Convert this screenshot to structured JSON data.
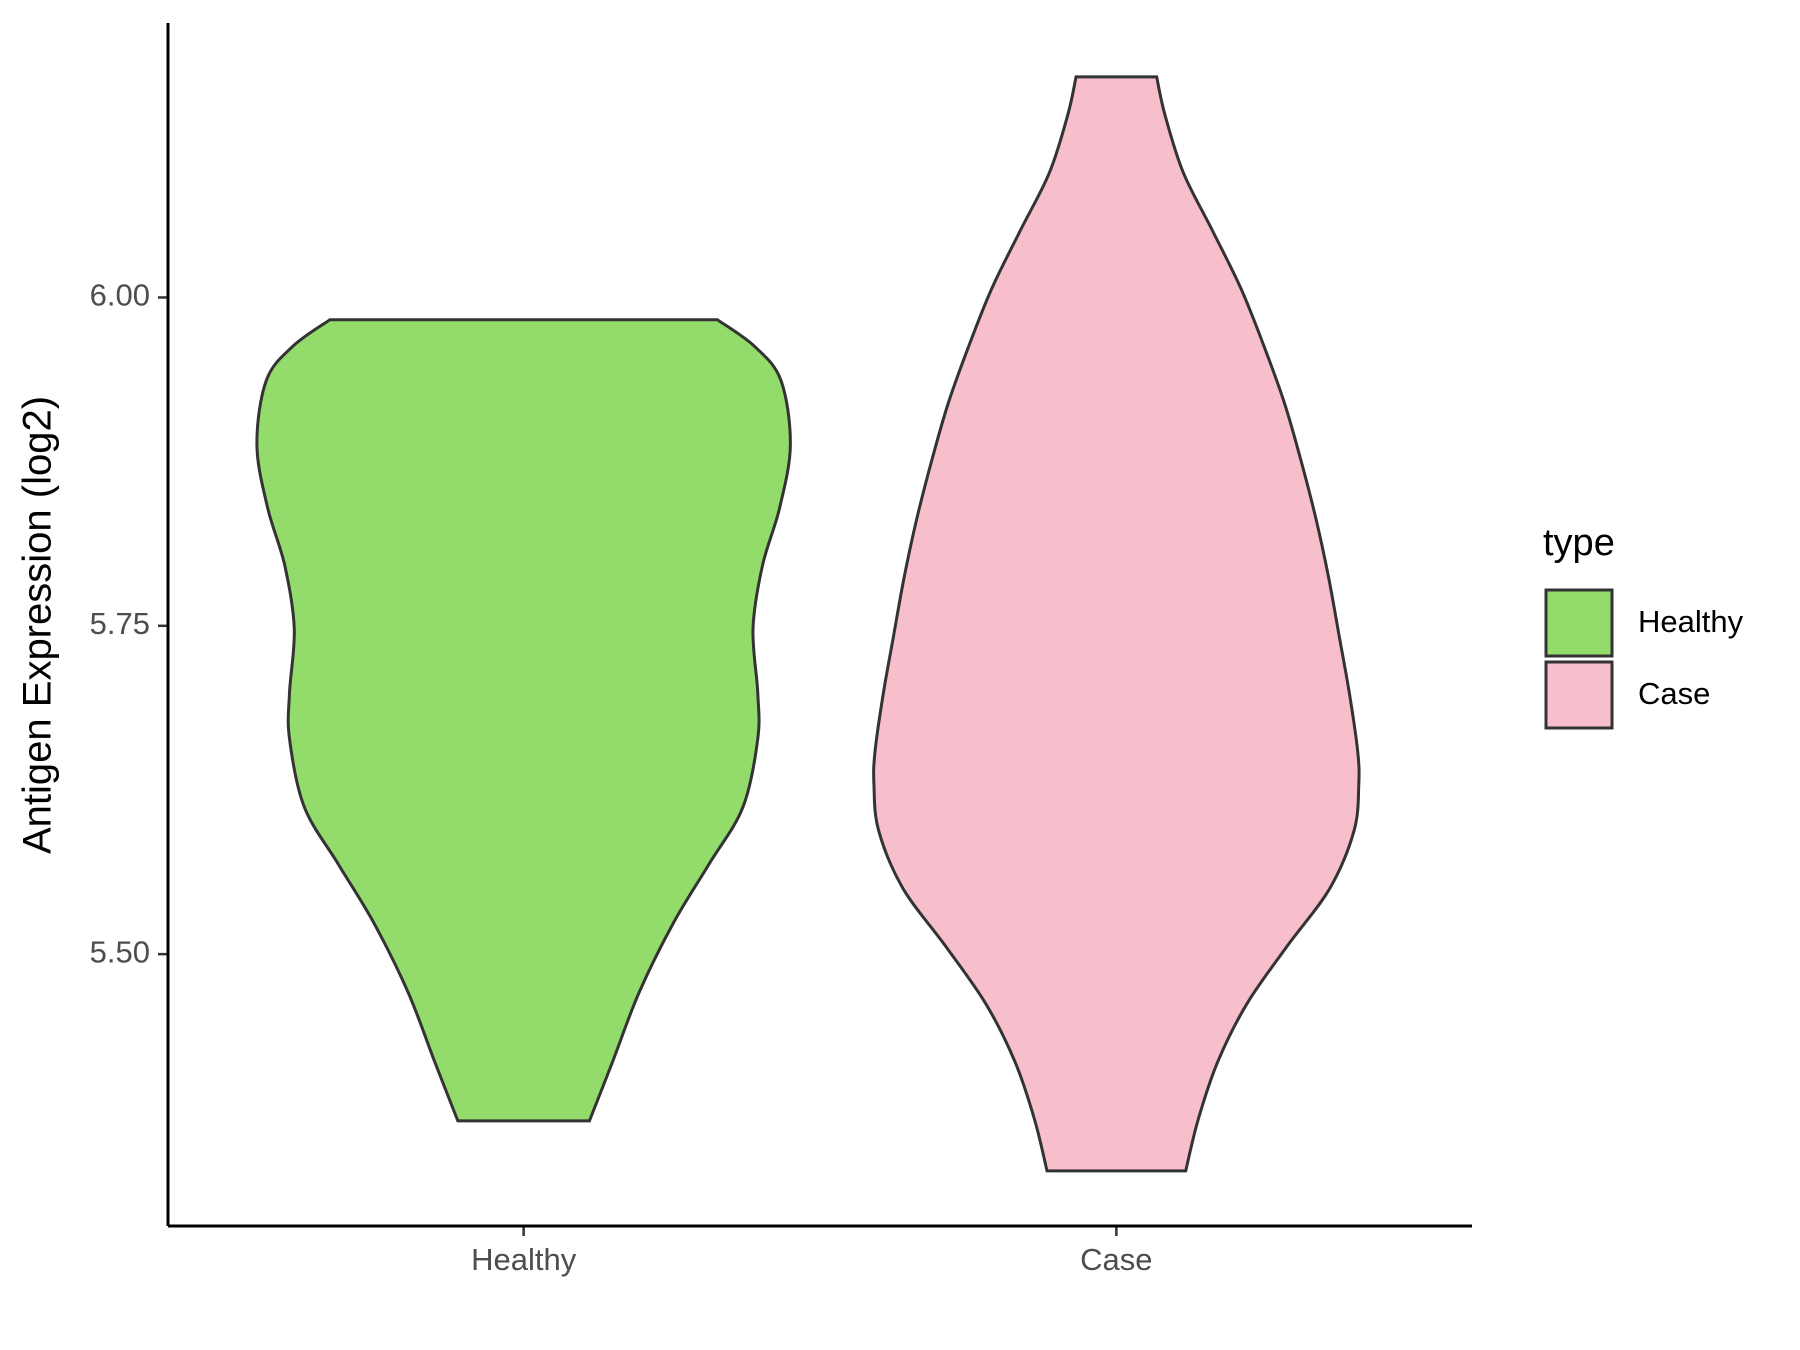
{
  "chart_data": {
    "type": "violin",
    "y_label": "Antigen Expression (log2)",
    "categories": [
      "Healthy",
      "Case"
    ],
    "legend_title": "type",
    "legend": "right",
    "ylim": [
      5.293,
      6.209
    ],
    "yticks": [
      {
        "value": 5.5,
        "label": "5.50"
      },
      {
        "value": 5.75,
        "label": "5.75"
      },
      {
        "value": 6.0,
        "label": "6.00"
      }
    ],
    "series": [
      {
        "name": "Healthy",
        "color": "#93dc6b",
        "y": [
          5.983,
          5.963,
          5.937,
          5.888,
          5.84,
          5.796,
          5.748,
          5.699,
          5.664,
          5.612,
          5.568,
          5.524,
          5.471,
          5.418,
          5.373
        ],
        "width": [
          0.327,
          0.389,
          0.434,
          0.45,
          0.432,
          0.403,
          0.387,
          0.395,
          0.395,
          0.37,
          0.312,
          0.253,
          0.195,
          0.15,
          0.111
        ]
      },
      {
        "name": "Case",
        "color": "#f7bfcb",
        "y": [
          6.168,
          6.139,
          6.095,
          6.051,
          6.007,
          5.963,
          5.919,
          5.875,
          5.831,
          5.787,
          5.742,
          5.699,
          5.655,
          5.629,
          5.594,
          5.55,
          5.506,
          5.462,
          5.418,
          5.374,
          5.335
        ],
        "width": [
          0.068,
          0.082,
          0.113,
          0.162,
          0.21,
          0.249,
          0.284,
          0.312,
          0.337,
          0.358,
          0.376,
          0.393,
          0.407,
          0.409,
          0.401,
          0.36,
          0.288,
          0.22,
          0.171,
          0.138,
          0.117
        ]
      }
    ]
  }
}
